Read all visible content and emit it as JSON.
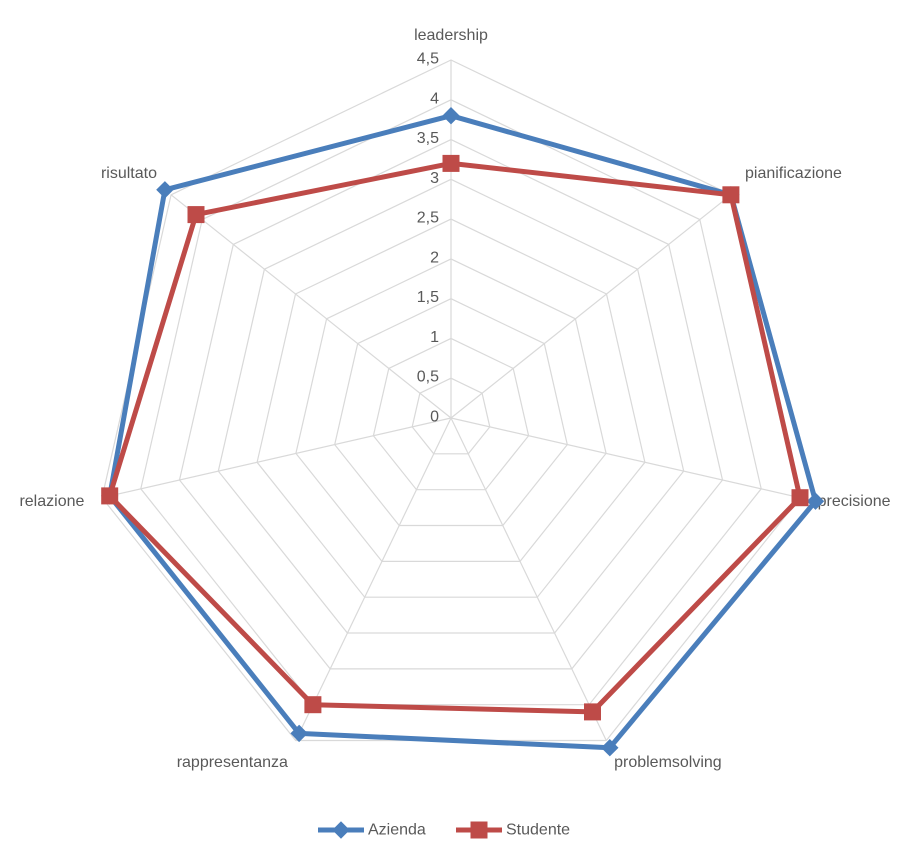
{
  "chart_data": {
    "type": "radar",
    "title": "",
    "categories": [
      "leadership",
      "pianificazione",
      "precisione",
      "problemsolving",
      "rappresentanza",
      "relazione",
      "risultato"
    ],
    "series": [
      {
        "name": "Azienda",
        "color": "#4a7ebb",
        "marker": "diamond",
        "values": [
          3.8,
          4.5,
          4.7,
          4.6,
          4.4,
          4.4,
          4.6
        ]
      },
      {
        "name": "Studente",
        "color": "#be4b48",
        "marker": "square",
        "values": [
          3.2,
          4.5,
          4.5,
          4.1,
          4.0,
          4.4,
          4.1
        ]
      }
    ],
    "rlim": [
      0,
      4.5
    ],
    "tick_values": [
      0,
      0.5,
      1,
      1.5,
      2,
      2.5,
      3,
      3.5,
      4,
      4.5
    ],
    "tick_labels": [
      "0",
      "0,5",
      "1",
      "1,5",
      "2",
      "2,5",
      "3",
      "3,5",
      "4",
      "4,5"
    ],
    "grid": true,
    "legend_position": "bottom"
  }
}
